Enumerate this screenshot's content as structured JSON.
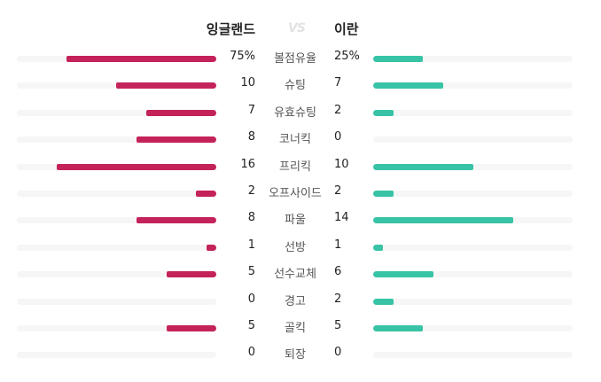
{
  "header": {
    "home_team": "잉글랜드",
    "vs": "VS",
    "away_team": "이란"
  },
  "colors": {
    "home": "#c4225a",
    "away": "#38c3a6",
    "track": "#f6f6f6"
  },
  "stats": [
    {
      "label": "볼점유율",
      "home": "75%",
      "away": "25%",
      "home_ratio": 0.75,
      "away_ratio": 0.25
    },
    {
      "label": "슈팅",
      "home": "10",
      "away": "7",
      "home_ratio": 0.5,
      "away_ratio": 0.35
    },
    {
      "label": "유효슈팅",
      "home": "7",
      "away": "2",
      "home_ratio": 0.35,
      "away_ratio": 0.1
    },
    {
      "label": "코너킥",
      "home": "8",
      "away": "0",
      "home_ratio": 0.4,
      "away_ratio": 0.0
    },
    {
      "label": "프리킥",
      "home": "16",
      "away": "10",
      "home_ratio": 0.8,
      "away_ratio": 0.5
    },
    {
      "label": "오프사이드",
      "home": "2",
      "away": "2",
      "home_ratio": 0.1,
      "away_ratio": 0.1
    },
    {
      "label": "파울",
      "home": "8",
      "away": "14",
      "home_ratio": 0.4,
      "away_ratio": 0.7
    },
    {
      "label": "선방",
      "home": "1",
      "away": "1",
      "home_ratio": 0.05,
      "away_ratio": 0.05
    },
    {
      "label": "선수교체",
      "home": "5",
      "away": "6",
      "home_ratio": 0.25,
      "away_ratio": 0.3
    },
    {
      "label": "경고",
      "home": "0",
      "away": "2",
      "home_ratio": 0.0,
      "away_ratio": 0.1
    },
    {
      "label": "골킥",
      "home": "5",
      "away": "5",
      "home_ratio": 0.25,
      "away_ratio": 0.25
    },
    {
      "label": "퇴장",
      "home": "0",
      "away": "0",
      "home_ratio": 0.0,
      "away_ratio": 0.0
    }
  ]
}
